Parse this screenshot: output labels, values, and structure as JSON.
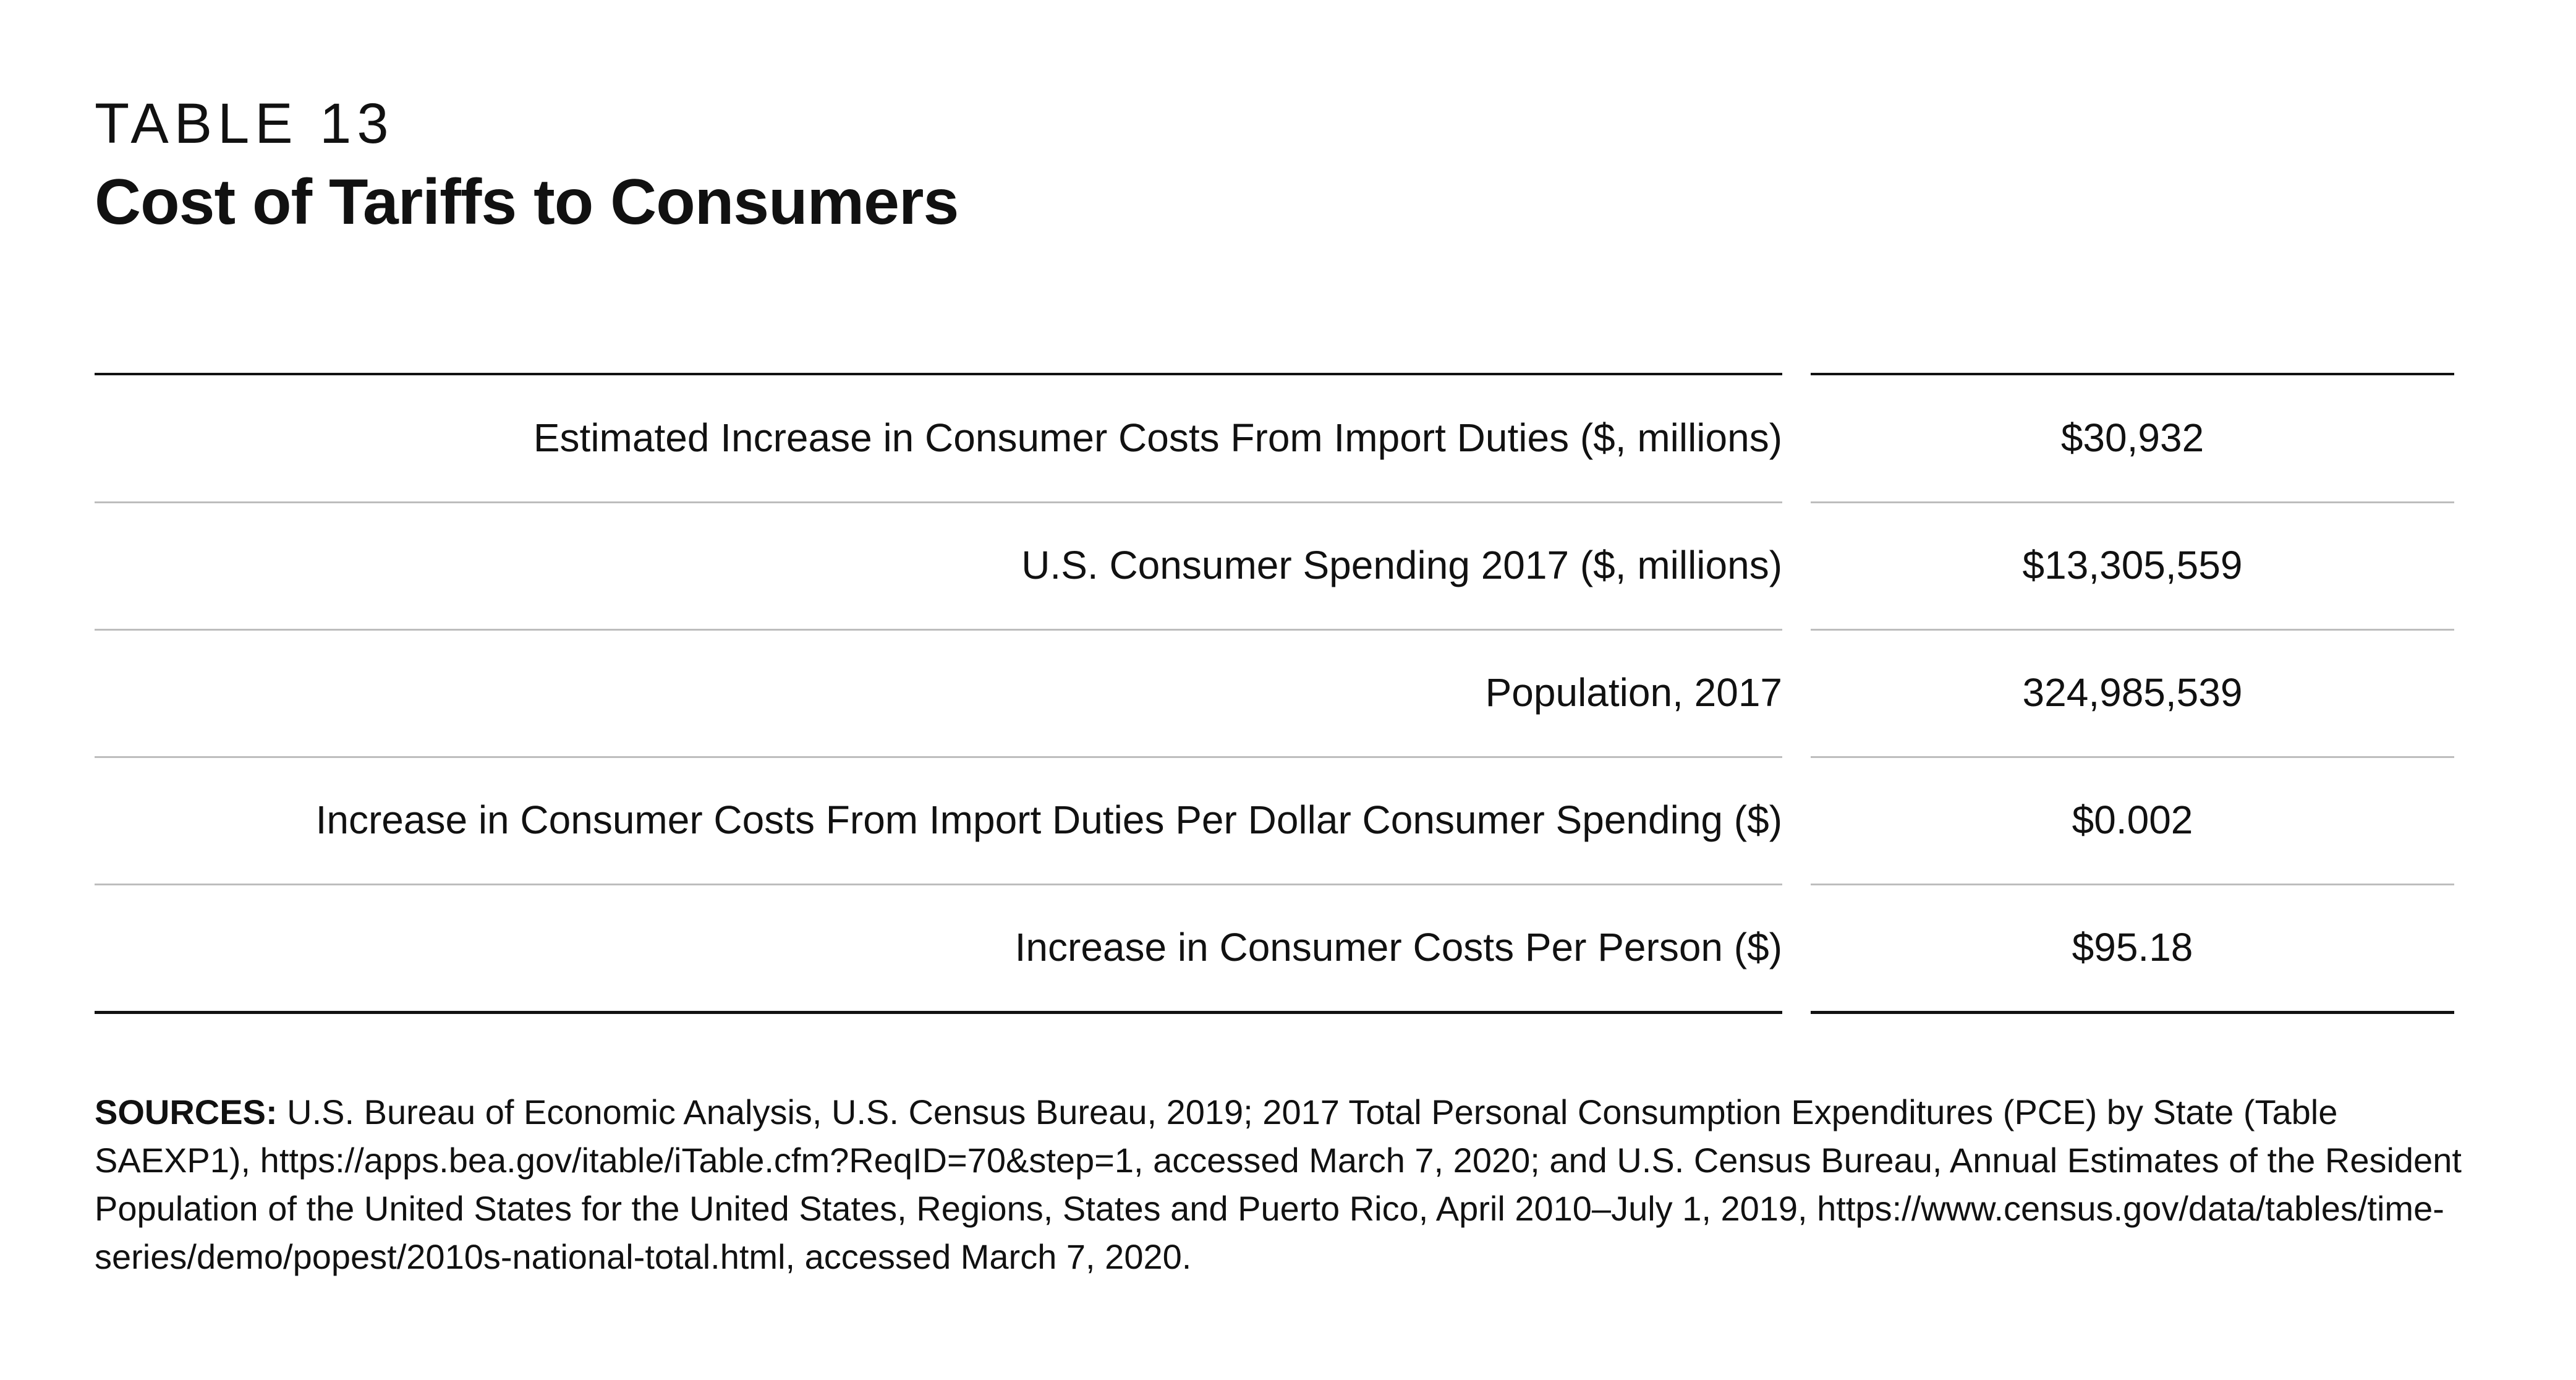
{
  "table_label": "TABLE 13",
  "title": "Cost of Tariffs to Consumers",
  "rows": [
    {
      "label": "Estimated Increase in Consumer Costs From Import Duties ($, millions)",
      "value": "$30,932"
    },
    {
      "label": "U.S. Consumer Spending 2017 ($, millions)",
      "value": "$13,305,559"
    },
    {
      "label": "Population, 2017",
      "value": "324,985,539"
    },
    {
      "label": "Increase in Consumer Costs From Import Duties Per Dollar Consumer Spending ($)",
      "value": "$0.002"
    },
    {
      "label": "Increase in Consumer Costs Per Person ($)",
      "value": "$95.18"
    }
  ],
  "sources": {
    "heading": "SOURCES:",
    "text": "U.S. Bureau of Economic Analysis, U.S. Census Bureau, 2019; 2017 Total Personal Consumption Expenditures (PCE) by State (Table SAEXP1), https://apps.bea.gov/itable/iTable.cfm?ReqID=70&step=1, accessed March 7, 2020; and U.S. Census Bureau, Annual Estimates of the Resident Population of the United States for the United States, Regions, States and Puerto Rico, April 2010–July 1, 2019, https://www.census.gov/data/tables/time-series/demo/popest/2010s-national-total.html, accessed March 7, 2020."
  }
}
